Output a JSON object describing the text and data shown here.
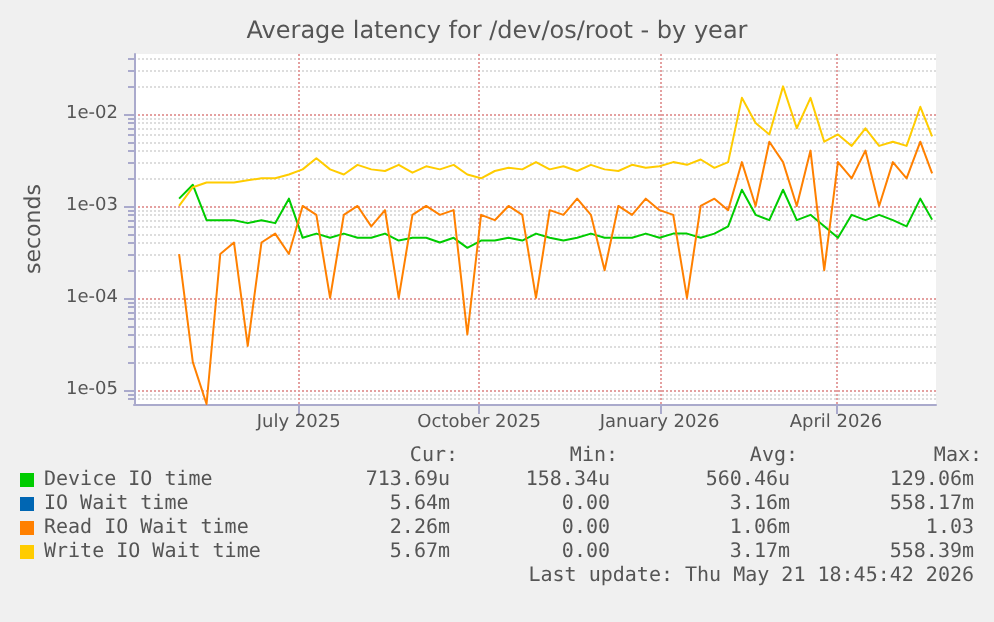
{
  "chart_data": {
    "type": "line",
    "title": "Average latency for /dev/os/root - by year",
    "ylabel": "seconds",
    "log": "y",
    "grid": true,
    "legend": "bottom",
    "xlim": [
      "2025-04-08",
      "2026-05-22"
    ],
    "xticks": [
      {
        "value": "2025-07-01",
        "label": "July 2025"
      },
      {
        "value": "2025-10-01",
        "label": "October 2025"
      },
      {
        "value": "2026-01-01",
        "label": "January 2026"
      },
      {
        "value": "2026-04-01",
        "label": "April 2026"
      }
    ],
    "ylim": [
      7e-06,
      0.045
    ],
    "yticks": [
      {
        "value": 1e-05,
        "label": "1e-05"
      },
      {
        "value": 0.0001,
        "label": "1e-04"
      },
      {
        "value": 0.001,
        "label": "1e-03"
      },
      {
        "value": 0.01,
        "label": "1e-02"
      }
    ],
    "x": [
      "2025-05-01",
      "2025-05-08",
      "2025-05-15",
      "2025-05-22",
      "2025-05-29",
      "2025-06-05",
      "2025-06-12",
      "2025-06-19",
      "2025-06-26",
      "2025-07-03",
      "2025-07-10",
      "2025-07-17",
      "2025-07-24",
      "2025-07-31",
      "2025-08-07",
      "2025-08-14",
      "2025-08-21",
      "2025-08-28",
      "2025-09-04",
      "2025-09-11",
      "2025-09-18",
      "2025-09-25",
      "2025-10-02",
      "2025-10-09",
      "2025-10-16",
      "2025-10-23",
      "2025-10-30",
      "2025-11-06",
      "2025-11-13",
      "2025-11-20",
      "2025-11-27",
      "2025-12-04",
      "2025-12-11",
      "2025-12-18",
      "2025-12-25",
      "2026-01-01",
      "2026-01-08",
      "2026-01-15",
      "2026-01-22",
      "2026-01-29",
      "2026-02-05",
      "2026-02-12",
      "2026-02-19",
      "2026-02-26",
      "2026-03-05",
      "2026-03-12",
      "2026-03-19",
      "2026-03-26",
      "2026-04-02",
      "2026-04-09",
      "2026-04-16",
      "2026-04-23",
      "2026-04-30",
      "2026-05-07",
      "2026-05-14",
      "2026-05-20"
    ],
    "series": [
      {
        "name": "Device IO time",
        "color": "#00cc00",
        "values": [
          0.0012,
          0.0017,
          0.0007,
          0.0007,
          0.0007,
          0.00065,
          0.0007,
          0.00065,
          0.0012,
          0.00045,
          0.0005,
          0.00045,
          0.0005,
          0.00045,
          0.00045,
          0.0005,
          0.00042,
          0.00045,
          0.00045,
          0.0004,
          0.00045,
          0.00035,
          0.00042,
          0.00042,
          0.00045,
          0.00042,
          0.0005,
          0.00045,
          0.00042,
          0.00045,
          0.0005,
          0.00045,
          0.00045,
          0.00045,
          0.0005,
          0.00045,
          0.0005,
          0.0005,
          0.00045,
          0.0005,
          0.0006,
          0.0015,
          0.0008,
          0.0007,
          0.0015,
          0.0007,
          0.0008,
          0.0006,
          0.00045,
          0.0008,
          0.0007,
          0.0008,
          0.0007,
          0.0006,
          0.0012,
          0.00071
        ]
      },
      {
        "name": "IO Wait time",
        "color": "#0066b3",
        "values": [
          null,
          null,
          null,
          null,
          null,
          null,
          null,
          null,
          null,
          null,
          null,
          null,
          null,
          null,
          null,
          null,
          null,
          null,
          null,
          null,
          null,
          null,
          null,
          null,
          null,
          null,
          null,
          null,
          null,
          null,
          null,
          null,
          null,
          null,
          null,
          null,
          null,
          null,
          null,
          null,
          null,
          null,
          null,
          null,
          null,
          null,
          null,
          null,
          null,
          null,
          null,
          null,
          null,
          null,
          null,
          null
        ]
      },
      {
        "name": "Read IO Wait time",
        "color": "#ff8000",
        "values": [
          0.0003,
          2e-05,
          7e-06,
          0.0003,
          0.0004,
          3e-05,
          0.0004,
          0.0005,
          0.0003,
          0.001,
          0.0008,
          0.0001,
          0.0008,
          0.001,
          0.0006,
          0.0009,
          0.0001,
          0.0008,
          0.001,
          0.0008,
          0.0009,
          4e-05,
          0.0008,
          0.0007,
          0.001,
          0.0008,
          0.0001,
          0.0009,
          0.0008,
          0.0012,
          0.0008,
          0.0002,
          0.001,
          0.0008,
          0.0012,
          0.0009,
          0.0008,
          0.0001,
          0.001,
          0.0012,
          0.0009,
          0.003,
          0.001,
          0.005,
          0.003,
          0.001,
          0.004,
          0.0002,
          0.003,
          0.002,
          0.004,
          0.001,
          0.003,
          0.002,
          0.005,
          0.00226
        ]
      },
      {
        "name": "Write IO Wait time",
        "color": "#ffcc00",
        "values": [
          0.001,
          0.0016,
          0.0018,
          0.0018,
          0.0018,
          0.0019,
          0.002,
          0.002,
          0.0022,
          0.0025,
          0.0033,
          0.0025,
          0.0022,
          0.0028,
          0.0025,
          0.0024,
          0.0028,
          0.0023,
          0.0027,
          0.0025,
          0.0028,
          0.0022,
          0.002,
          0.0024,
          0.0026,
          0.0025,
          0.003,
          0.0025,
          0.0027,
          0.0024,
          0.0028,
          0.0025,
          0.0024,
          0.0028,
          0.0026,
          0.0027,
          0.003,
          0.0028,
          0.0032,
          0.0026,
          0.003,
          0.015,
          0.008,
          0.006,
          0.02,
          0.007,
          0.015,
          0.005,
          0.006,
          0.0045,
          0.007,
          0.0045,
          0.005,
          0.0045,
          0.012,
          0.0057
        ]
      }
    ],
    "annotations": [
      "Cur:",
      "Min:",
      "Avg:",
      "Max:",
      "713.69u",
      "158.34u",
      "560.46u",
      "129.06m",
      "5.64m",
      "0.00",
      "3.16m",
      "558.17m",
      "2.26m",
      "0.00",
      "1.06m",
      "1.03",
      "5.67m",
      "0.00",
      "3.17m",
      "558.39m",
      "Last update: Thu May 21 18:45:42 2026"
    ]
  }
}
